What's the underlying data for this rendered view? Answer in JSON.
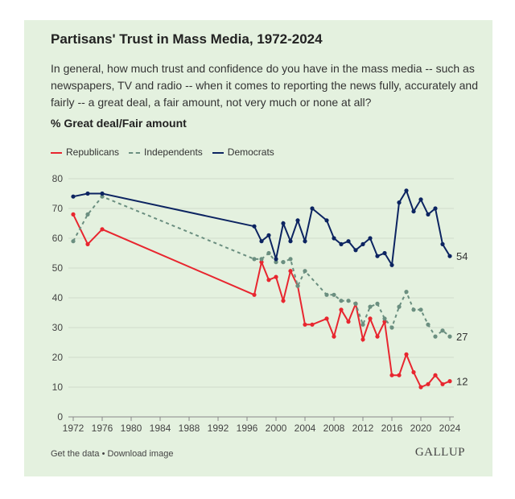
{
  "title": "Partisans' Trust in Mass Media, 1972-2024",
  "subtitle": "In general, how much trust and confidence do you have in the mass media -- such as newspapers, TV and radio -- when it comes to reporting the news fully, accurately and fairly -- a great deal, a fair amount, not very much or none at all?",
  "footer": {
    "links": "Get the data • Download image",
    "logo": "GALLUP"
  },
  "chart_data": {
    "type": "line",
    "title": "Partisans' Trust in Mass Media, 1972-2024",
    "ylabel": "% Great deal/Fair amount",
    "ylim": [
      0,
      80
    ],
    "yticks": [
      0,
      10,
      20,
      30,
      40,
      50,
      60,
      70,
      80
    ],
    "xlim": [
      1972,
      2024
    ],
    "xticks": [
      1972,
      1976,
      1980,
      1984,
      1988,
      1992,
      1996,
      2000,
      2004,
      2008,
      2012,
      2016,
      2020,
      2024
    ],
    "grid": true,
    "legend": "top-left",
    "x": [
      1972,
      1974,
      1976,
      1997,
      1998,
      1999,
      2000,
      2001,
      2002,
      2003,
      2004,
      2005,
      2007,
      2008,
      2009,
      2010,
      2011,
      2012,
      2013,
      2014,
      2015,
      2016,
      2017,
      2018,
      2019,
      2020,
      2021,
      2022,
      2023,
      2024
    ],
    "series": [
      {
        "name": "Republicans",
        "color": "#e8262f",
        "dash": false,
        "end_label": "12",
        "values": [
          68,
          58,
          63,
          41,
          52,
          46,
          47,
          39,
          49,
          44,
          31,
          31,
          33,
          27,
          36,
          32,
          38,
          26,
          33,
          27,
          32,
          14,
          14,
          21,
          15,
          10,
          11,
          14,
          11,
          12
        ]
      },
      {
        "name": "Independents",
        "color": "#6b8f80",
        "dash": true,
        "end_label": "27",
        "values": [
          59,
          68,
          74,
          53,
          53,
          55,
          52,
          52,
          53,
          44,
          49,
          null,
          41,
          41,
          39,
          39,
          38,
          31,
          37,
          38,
          33,
          30,
          37,
          42,
          36,
          36,
          31,
          27,
          29,
          27
        ]
      },
      {
        "name": "Democrats",
        "color": "#0c2461",
        "dash": false,
        "end_label": "54",
        "values": [
          74,
          75,
          75,
          64,
          59,
          61,
          53,
          65,
          59,
          66,
          59,
          70,
          66,
          60,
          58,
          59,
          56,
          58,
          60,
          54,
          55,
          51,
          72,
          76,
          69,
          73,
          68,
          70,
          58,
          54
        ]
      }
    ]
  }
}
